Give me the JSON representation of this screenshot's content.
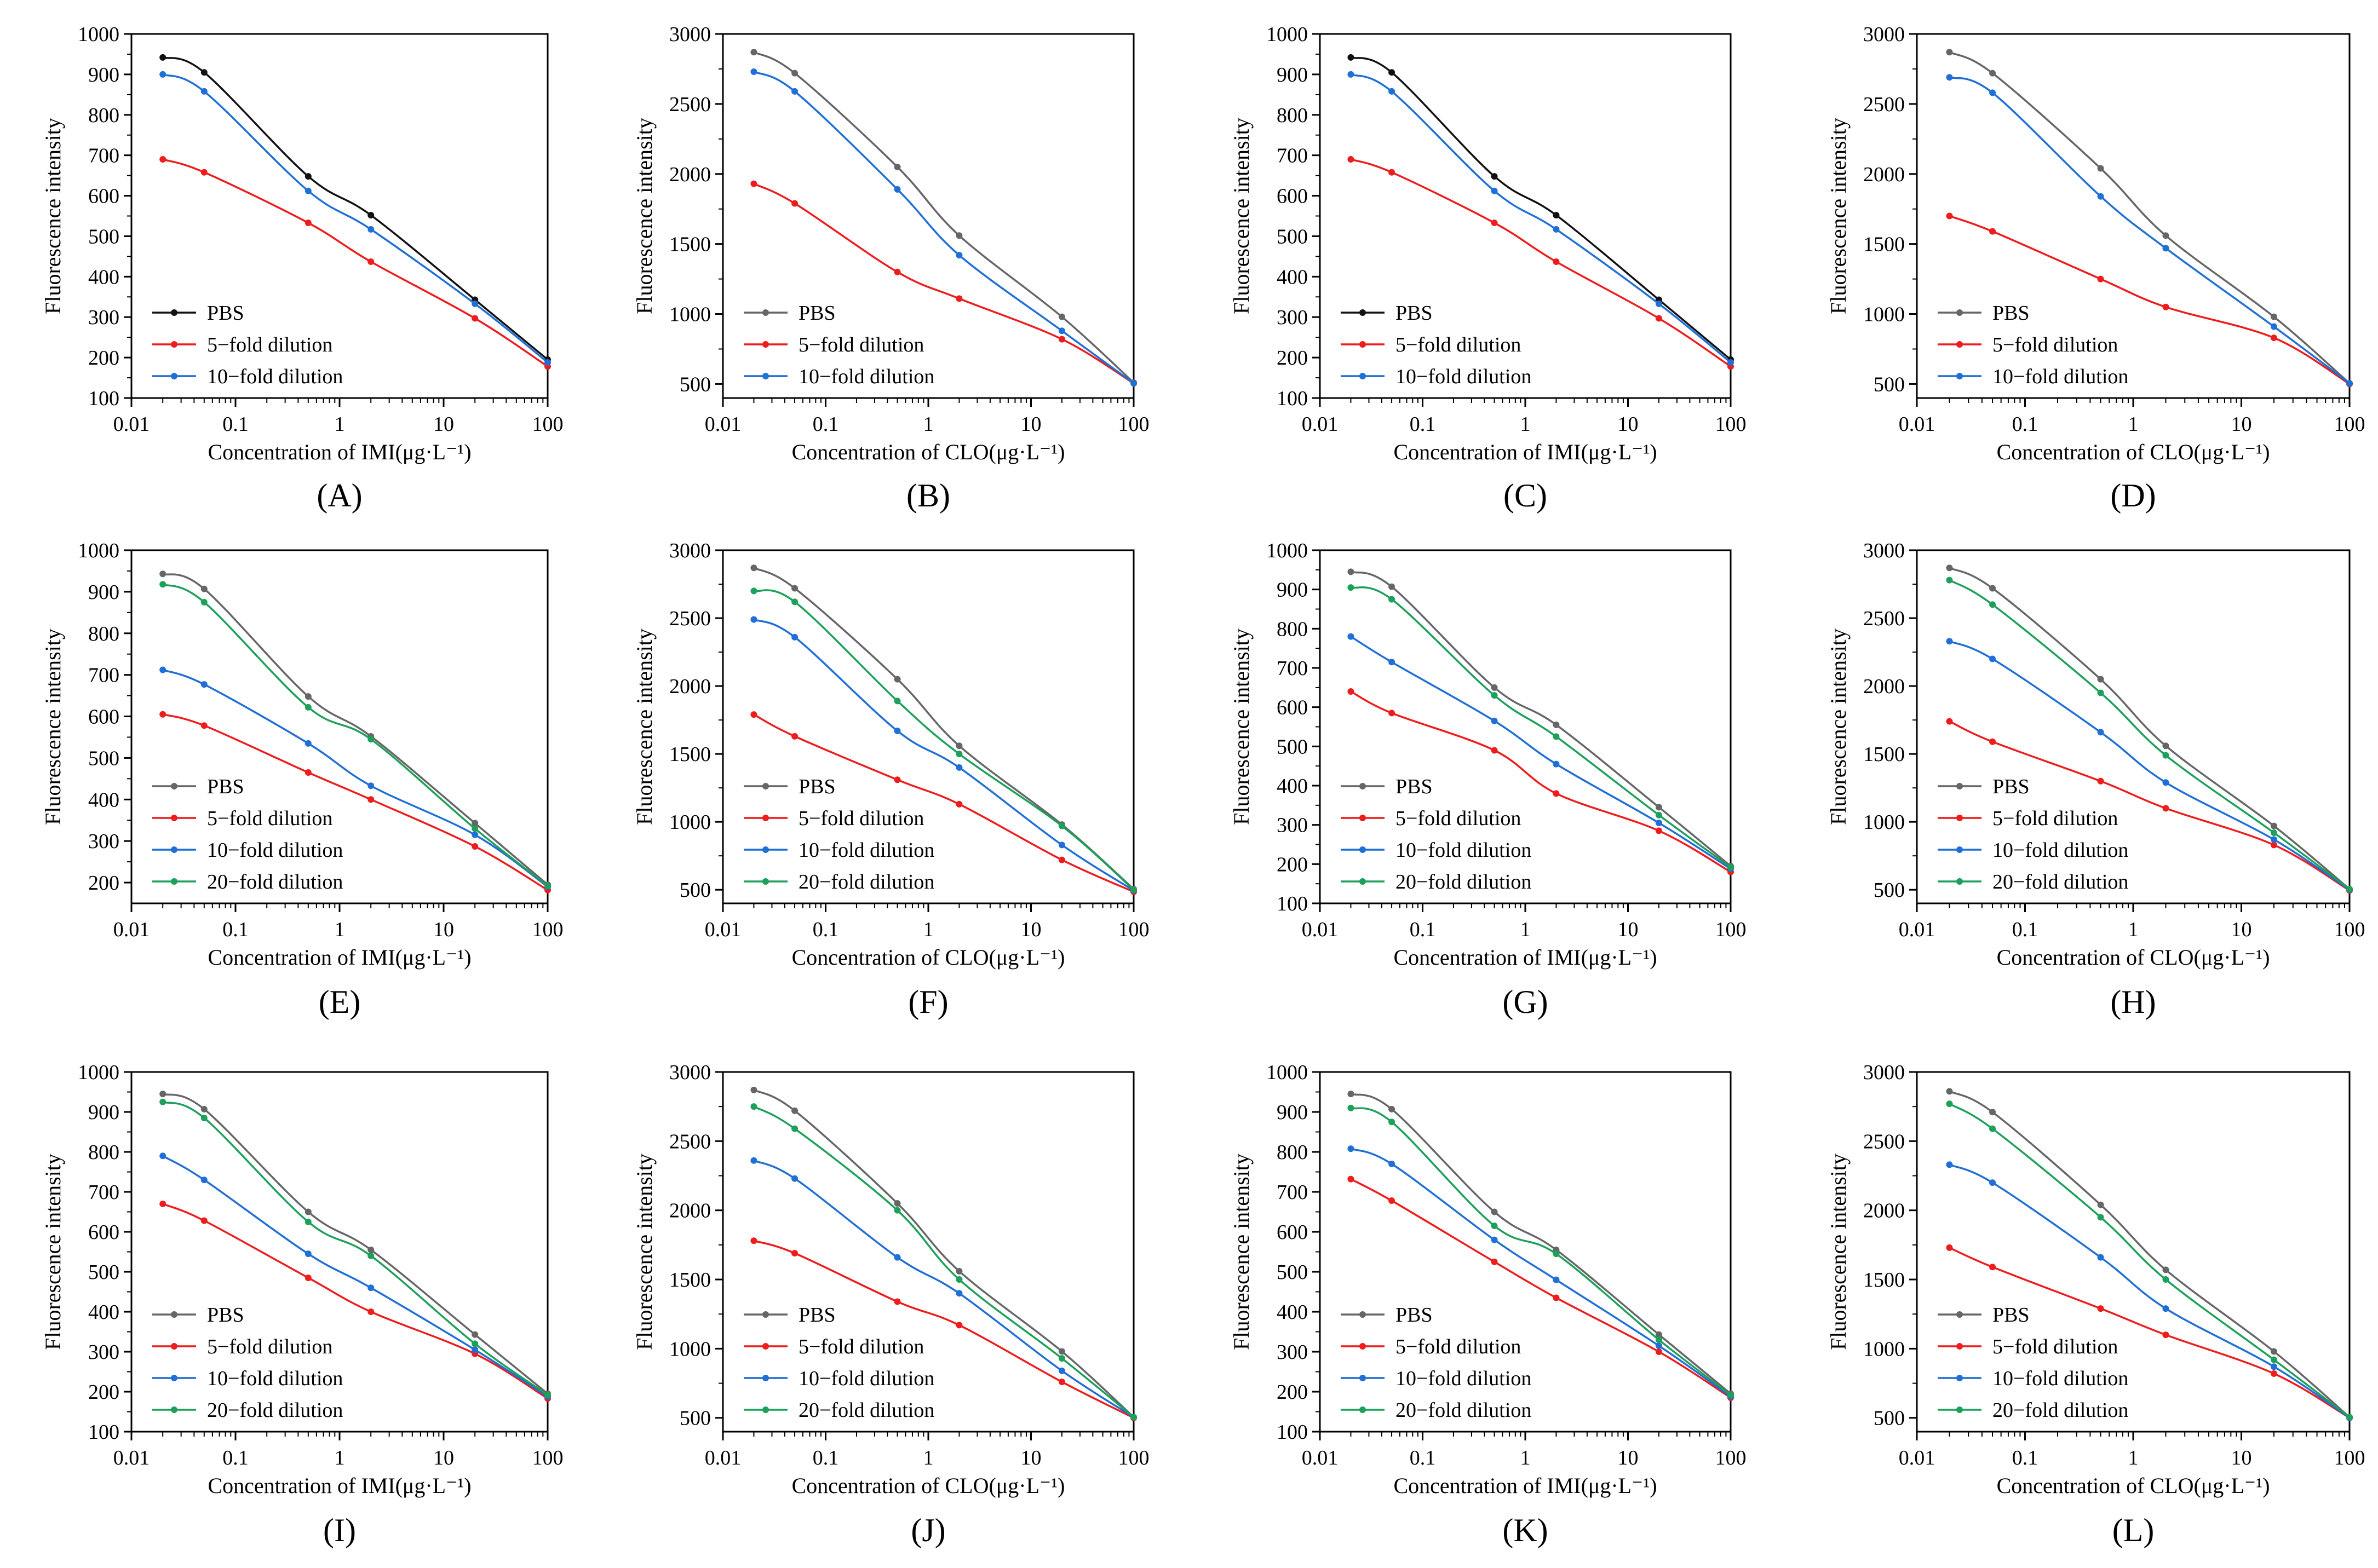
{
  "colors": {
    "PBS": "#555555",
    "d5": "#ee1c1c",
    "d10": "#1f6fd6",
    "d20": "#1ca05a"
  },
  "chart_data": [
    {
      "panel": "A",
      "label": "(A)",
      "type": "line",
      "x_scale": "log",
      "x": [
        0.02,
        0.05,
        0.5,
        2,
        20,
        100
      ],
      "xlabel": "Concentration of IMI(μg·L⁻¹)",
      "ylabel": "Fluorescence intensity",
      "ylim": [
        100,
        1000
      ],
      "yticks": [
        100,
        200,
        300,
        400,
        500,
        600,
        700,
        800,
        900,
        1000
      ],
      "xticks": [
        0.01,
        0.1,
        1,
        10,
        100
      ],
      "xtick_labels": [
        "0.01",
        "0.1",
        "1",
        "10",
        "100"
      ],
      "series": [
        {
          "name": "PBS",
          "color": "#111111",
          "values": [
            942,
            905,
            648,
            552,
            343,
            195
          ]
        },
        {
          "name": "5−fold dilution",
          "color": "#ee1c1c",
          "values": [
            690,
            658,
            533,
            437,
            297,
            178
          ]
        },
        {
          "name": "10−fold dilution",
          "color": "#1f6fd6",
          "values": [
            900,
            858,
            612,
            517,
            333,
            188
          ]
        }
      ]
    },
    {
      "panel": "B",
      "label": "(B)",
      "type": "line",
      "x_scale": "log",
      "x": [
        0.02,
        0.05,
        0.5,
        2,
        20,
        100
      ],
      "xlabel": "Concentration of CLO(μg·L⁻¹)",
      "ylabel": "Fluorescence intensity",
      "ylim": [
        400,
        3000
      ],
      "yticks": [
        500,
        1000,
        1500,
        2000,
        2500,
        3000
      ],
      "xticks": [
        0.01,
        0.1,
        1,
        10,
        100
      ],
      "xtick_labels": [
        "0.01",
        "0.1",
        "1",
        "10",
        "100"
      ],
      "series": [
        {
          "name": "PBS",
          "color": "#666666",
          "values": [
            2870,
            2720,
            2050,
            1560,
            980,
            510
          ]
        },
        {
          "name": "5−fold dilution",
          "color": "#ee1c1c",
          "values": [
            1930,
            1790,
            1300,
            1110,
            820,
            505
          ]
        },
        {
          "name": "10−fold dilution",
          "color": "#1f6fd6",
          "values": [
            2730,
            2590,
            1890,
            1420,
            880,
            505
          ]
        }
      ]
    },
    {
      "panel": "C",
      "label": "(C)",
      "type": "line",
      "x_scale": "log",
      "x": [
        0.02,
        0.05,
        0.5,
        2,
        20,
        100
      ],
      "xlabel": "Concentration of IMI(μg·L⁻¹)",
      "ylabel": "Fluorescence intensity",
      "ylim": [
        100,
        1000
      ],
      "yticks": [
        100,
        200,
        300,
        400,
        500,
        600,
        700,
        800,
        900,
        1000
      ],
      "xticks": [
        0.01,
        0.1,
        1,
        10,
        100
      ],
      "xtick_labels": [
        "0.01",
        "0.1",
        "1",
        "10",
        "100"
      ],
      "series": [
        {
          "name": "PBS",
          "color": "#111111",
          "values": [
            942,
            905,
            648,
            552,
            343,
            195
          ]
        },
        {
          "name": "5−fold dilution",
          "color": "#ee1c1c",
          "values": [
            690,
            658,
            533,
            437,
            297,
            178
          ]
        },
        {
          "name": "10−fold dilution",
          "color": "#1f6fd6",
          "values": [
            900,
            858,
            612,
            517,
            333,
            188
          ]
        }
      ]
    },
    {
      "panel": "D",
      "label": "(D)",
      "type": "line",
      "x_scale": "log",
      "x": [
        0.02,
        0.05,
        0.5,
        2,
        20,
        100
      ],
      "xlabel": "Concentration of CLO(μg·L⁻¹)",
      "ylabel": "Fluorescence intensity",
      "ylim": [
        400,
        3000
      ],
      "yticks": [
        500,
        1000,
        1500,
        2000,
        2500,
        3000
      ],
      "xticks": [
        0.01,
        0.1,
        1,
        10,
        100
      ],
      "xtick_labels": [
        "0.01",
        "0.1",
        "1",
        "10",
        "100"
      ],
      "series": [
        {
          "name": "PBS",
          "color": "#666666",
          "values": [
            2870,
            2720,
            2040,
            1560,
            980,
            505
          ]
        },
        {
          "name": "5−fold dilution",
          "color": "#ee1c1c",
          "values": [
            1700,
            1590,
            1250,
            1050,
            830,
            500
          ]
        },
        {
          "name": "10−fold dilution",
          "color": "#1f6fd6",
          "values": [
            2690,
            2580,
            1840,
            1470,
            910,
            505
          ]
        }
      ]
    },
    {
      "panel": "E",
      "label": "(E)",
      "type": "line",
      "x_scale": "log",
      "x": [
        0.02,
        0.05,
        0.5,
        2,
        20,
        100
      ],
      "xlabel": "Concentration of IMI(μg·L⁻¹)",
      "ylabel": "Fluorescence intensity",
      "ylim": [
        150,
        1000
      ],
      "yticks": [
        200,
        300,
        400,
        500,
        600,
        700,
        800,
        900,
        1000
      ],
      "xticks": [
        0.01,
        0.1,
        1,
        10,
        100
      ],
      "xtick_labels": [
        "0.01",
        "0.1",
        "1",
        "10",
        "100"
      ],
      "series": [
        {
          "name": "PBS",
          "color": "#666666",
          "values": [
            943,
            907,
            648,
            552,
            343,
            195
          ]
        },
        {
          "name": "5−fold dilution",
          "color": "#ee1c1c",
          "values": [
            605,
            578,
            465,
            400,
            287,
            182
          ]
        },
        {
          "name": "10−fold dilution",
          "color": "#1f6fd6",
          "values": [
            712,
            677,
            535,
            433,
            315,
            190
          ]
        },
        {
          "name": "20−fold dilution",
          "color": "#1ca05a",
          "values": [
            918,
            875,
            622,
            545,
            330,
            192
          ]
        }
      ]
    },
    {
      "panel": "F",
      "label": "(F)",
      "type": "line",
      "x_scale": "log",
      "x": [
        0.02,
        0.05,
        0.5,
        2,
        20,
        100
      ],
      "xlabel": "Concentration of CLO(μg·L⁻¹)",
      "ylabel": "Fluorescence intensity",
      "ylim": [
        400,
        3000
      ],
      "yticks": [
        500,
        1000,
        1500,
        2000,
        2500,
        3000
      ],
      "xticks": [
        0.01,
        0.1,
        1,
        10,
        100
      ],
      "xtick_labels": [
        "0.01",
        "0.1",
        "1",
        "10",
        "100"
      ],
      "series": [
        {
          "name": "PBS",
          "color": "#666666",
          "values": [
            2870,
            2720,
            2050,
            1560,
            980,
            505
          ]
        },
        {
          "name": "5−fold dilution",
          "color": "#ee1c1c",
          "values": [
            1790,
            1630,
            1310,
            1130,
            720,
            485
          ]
        },
        {
          "name": "10−fold dilution",
          "color": "#1f6fd6",
          "values": [
            2490,
            2360,
            1670,
            1400,
            830,
            495
          ]
        },
        {
          "name": "20−fold dilution",
          "color": "#1ca05a",
          "values": [
            2700,
            2620,
            1890,
            1500,
            970,
            500
          ]
        }
      ]
    },
    {
      "panel": "G",
      "label": "(G)",
      "type": "line",
      "x_scale": "log",
      "x": [
        0.02,
        0.05,
        0.5,
        2,
        20,
        100
      ],
      "xlabel": "Concentration of IMI(μg·L⁻¹)",
      "ylabel": "Fluorescence intensity",
      "ylim": [
        100,
        1000
      ],
      "yticks": [
        100,
        200,
        300,
        400,
        500,
        600,
        700,
        800,
        900,
        1000
      ],
      "xticks": [
        0.01,
        0.1,
        1,
        10,
        100
      ],
      "xtick_labels": [
        "0.01",
        "0.1",
        "1",
        "10",
        "100"
      ],
      "series": [
        {
          "name": "PBS",
          "color": "#666666",
          "values": [
            945,
            907,
            650,
            555,
            345,
            195
          ]
        },
        {
          "name": "5−fold dilution",
          "color": "#ee1c1c",
          "values": [
            640,
            585,
            490,
            380,
            285,
            180
          ]
        },
        {
          "name": "10−fold dilution",
          "color": "#1f6fd6",
          "values": [
            780,
            715,
            565,
            455,
            305,
            188
          ]
        },
        {
          "name": "20−fold dilution",
          "color": "#1ca05a",
          "values": [
            905,
            875,
            630,
            525,
            325,
            192
          ]
        }
      ]
    },
    {
      "panel": "H",
      "label": "(H)",
      "type": "line",
      "x_scale": "log",
      "x": [
        0.02,
        0.05,
        0.5,
        2,
        20,
        100
      ],
      "xlabel": "Concentration of CLO(μg·L⁻¹)",
      "ylabel": "Fluorescence intensity",
      "ylim": [
        400,
        3000
      ],
      "yticks": [
        500,
        1000,
        1500,
        2000,
        2500,
        3000
      ],
      "xticks": [
        0.01,
        0.1,
        1,
        10,
        100
      ],
      "xtick_labels": [
        "0.01",
        "0.1",
        "1",
        "10",
        "100"
      ],
      "series": [
        {
          "name": "PBS",
          "color": "#666666",
          "values": [
            2870,
            2720,
            2050,
            1560,
            970,
            505
          ]
        },
        {
          "name": "5−fold dilution",
          "color": "#ee1c1c",
          "values": [
            1740,
            1590,
            1300,
            1100,
            830,
            495
          ]
        },
        {
          "name": "10−fold dilution",
          "color": "#1f6fd6",
          "values": [
            2330,
            2200,
            1660,
            1290,
            870,
            500
          ]
        },
        {
          "name": "20−fold dilution",
          "color": "#1ca05a",
          "values": [
            2780,
            2600,
            1950,
            1490,
            920,
            505
          ]
        }
      ]
    },
    {
      "panel": "I",
      "label": "(I)",
      "type": "line",
      "x_scale": "log",
      "x": [
        0.02,
        0.05,
        0.5,
        2,
        20,
        100
      ],
      "xlabel": "Concentration of IMI(μg·L⁻¹)",
      "ylabel": "Fluorescence intensity",
      "ylim": [
        100,
        1000
      ],
      "yticks": [
        100,
        200,
        300,
        400,
        500,
        600,
        700,
        800,
        900,
        1000
      ],
      "xticks": [
        0.01,
        0.1,
        1,
        10,
        100
      ],
      "xtick_labels": [
        "0.01",
        "0.1",
        "1",
        "10",
        "100"
      ],
      "series": [
        {
          "name": "PBS",
          "color": "#666666",
          "values": [
            945,
            907,
            650,
            555,
            343,
            195
          ]
        },
        {
          "name": "5−fold dilution",
          "color": "#ee1c1c",
          "values": [
            670,
            628,
            485,
            400,
            295,
            183
          ]
        },
        {
          "name": "10−fold dilution",
          "color": "#1f6fd6",
          "values": [
            790,
            730,
            545,
            460,
            305,
            188
          ]
        },
        {
          "name": "20−fold dilution",
          "color": "#1ca05a",
          "values": [
            925,
            885,
            625,
            540,
            320,
            192
          ]
        }
      ]
    },
    {
      "panel": "J",
      "label": "(J)",
      "type": "line",
      "x_scale": "log",
      "x": [
        0.02,
        0.05,
        0.5,
        2,
        20,
        100
      ],
      "xlabel": "Concentration of CLO(μg·L⁻¹)",
      "ylabel": "Fluorescence intensity",
      "ylim": [
        400,
        3000
      ],
      "yticks": [
        500,
        1000,
        1500,
        2000,
        2500,
        3000
      ],
      "xticks": [
        0.01,
        0.1,
        1,
        10,
        100
      ],
      "xtick_labels": [
        "0.01",
        "0.1",
        "1",
        "10",
        "100"
      ],
      "series": [
        {
          "name": "PBS",
          "color": "#666666",
          "values": [
            2870,
            2720,
            2050,
            1560,
            980,
            505
          ]
        },
        {
          "name": "5−fold dilution",
          "color": "#ee1c1c",
          "values": [
            1780,
            1690,
            1340,
            1170,
            760,
            500
          ]
        },
        {
          "name": "10−fold dilution",
          "color": "#1f6fd6",
          "values": [
            2360,
            2230,
            1660,
            1400,
            840,
            505
          ]
        },
        {
          "name": "20−fold dilution",
          "color": "#1ca05a",
          "values": [
            2750,
            2590,
            2000,
            1500,
            930,
            505
          ]
        }
      ]
    },
    {
      "panel": "K",
      "label": "(K)",
      "type": "line",
      "x_scale": "log",
      "x": [
        0.02,
        0.05,
        0.5,
        2,
        20,
        100
      ],
      "xlabel": "Concentration of IMI(μg·L⁻¹)",
      "ylabel": "Fluorescence intensity",
      "ylim": [
        100,
        1000
      ],
      "yticks": [
        100,
        200,
        300,
        400,
        500,
        600,
        700,
        800,
        900,
        1000
      ],
      "xticks": [
        0.01,
        0.1,
        1,
        10,
        100
      ],
      "xtick_labels": [
        "0.01",
        "0.1",
        "1",
        "10",
        "100"
      ],
      "series": [
        {
          "name": "PBS",
          "color": "#666666",
          "values": [
            945,
            907,
            650,
            555,
            343,
            195
          ]
        },
        {
          "name": "5−fold dilution",
          "color": "#ee1c1c",
          "values": [
            732,
            678,
            525,
            435,
            300,
            185
          ]
        },
        {
          "name": "10−fold dilution",
          "color": "#1f6fd6",
          "values": [
            808,
            770,
            580,
            480,
            315,
            188
          ]
        },
        {
          "name": "20−fold dilution",
          "color": "#1ca05a",
          "values": [
            910,
            875,
            615,
            545,
            330,
            192
          ]
        }
      ]
    },
    {
      "panel": "L",
      "label": "(L)",
      "type": "line",
      "x_scale": "log",
      "x": [
        0.02,
        0.05,
        0.5,
        2,
        20,
        100
      ],
      "xlabel": "Concentration of CLO(μg·L⁻¹)",
      "ylabel": "Fluorescence intensity",
      "ylim": [
        400,
        3000
      ],
      "yticks": [
        500,
        1000,
        1500,
        2000,
        2500,
        3000
      ],
      "xticks": [
        0.01,
        0.1,
        1,
        10,
        100
      ],
      "xtick_labels": [
        "0.01",
        "0.1",
        "1",
        "10",
        "100"
      ],
      "series": [
        {
          "name": "PBS",
          "color": "#666666",
          "values": [
            2860,
            2710,
            2040,
            1570,
            980,
            505
          ]
        },
        {
          "name": "5−fold dilution",
          "color": "#ee1c1c",
          "values": [
            1730,
            1590,
            1290,
            1100,
            820,
            500
          ]
        },
        {
          "name": "10−fold dilution",
          "color": "#1f6fd6",
          "values": [
            2330,
            2200,
            1660,
            1290,
            870,
            500
          ]
        },
        {
          "name": "20−fold dilution",
          "color": "#1ca05a",
          "values": [
            2770,
            2590,
            1950,
            1500,
            920,
            505
          ]
        }
      ]
    }
  ]
}
